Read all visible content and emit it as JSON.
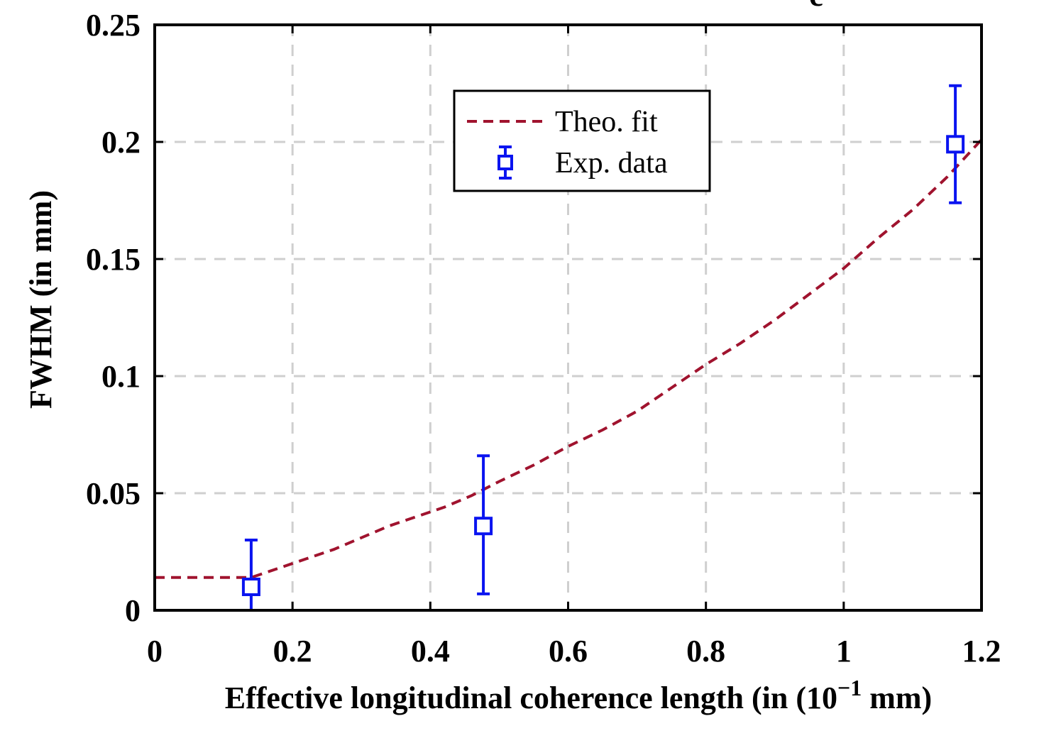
{
  "chart_data": {
    "type": "line",
    "panel_label": "c",
    "xlabel_main": "Effective longitudinal coherence length (in (10",
    "xlabel_sup": "−1",
    "xlabel_tail": " mm)",
    "ylabel": "FWHM (in mm)",
    "xlim": [
      0,
      1.2
    ],
    "ylim": [
      0,
      0.25
    ],
    "xticks": [
      0,
      0.2,
      0.4,
      0.6,
      0.8,
      1,
      1.2
    ],
    "xtick_labels": [
      "0",
      "0.2",
      "0.4",
      "0.6",
      "0.8",
      "1",
      "1.2"
    ],
    "yticks": [
      0,
      0.05,
      0.1,
      0.15,
      0.2,
      0.25
    ],
    "ytick_labels": [
      "0",
      "0.05",
      "0.1",
      "0.15",
      "0.2",
      "0.25"
    ],
    "grid": true,
    "legend_position": "top-center",
    "series": [
      {
        "name": "Theo. fit",
        "kind": "line",
        "style": "dashed",
        "color": "#a0132e",
        "x": [
          0,
          0.14,
          0.18,
          0.22,
          0.26,
          0.3,
          0.34,
          0.38,
          0.42,
          0.46,
          0.5,
          0.55,
          0.6,
          0.65,
          0.7,
          0.75,
          0.8,
          0.85,
          0.9,
          0.95,
          1.0,
          1.05,
          1.1,
          1.15,
          1.2
        ],
        "y": [
          0.014,
          0.014,
          0.018,
          0.022,
          0.026,
          0.031,
          0.036,
          0.04,
          0.044,
          0.049,
          0.055,
          0.062,
          0.07,
          0.077,
          0.085,
          0.095,
          0.105,
          0.114,
          0.124,
          0.135,
          0.146,
          0.159,
          0.171,
          0.185,
          0.201
        ]
      },
      {
        "name": "Exp. data",
        "kind": "errorbar",
        "marker": "square",
        "color": "#0a14f0",
        "x": [
          0.14,
          0.477,
          1.162
        ],
        "y": [
          0.01,
          0.036,
          0.199
        ],
        "y_low": [
          0.0,
          0.007,
          0.174
        ],
        "y_high": [
          0.03,
          0.066,
          0.224
        ]
      }
    ]
  }
}
